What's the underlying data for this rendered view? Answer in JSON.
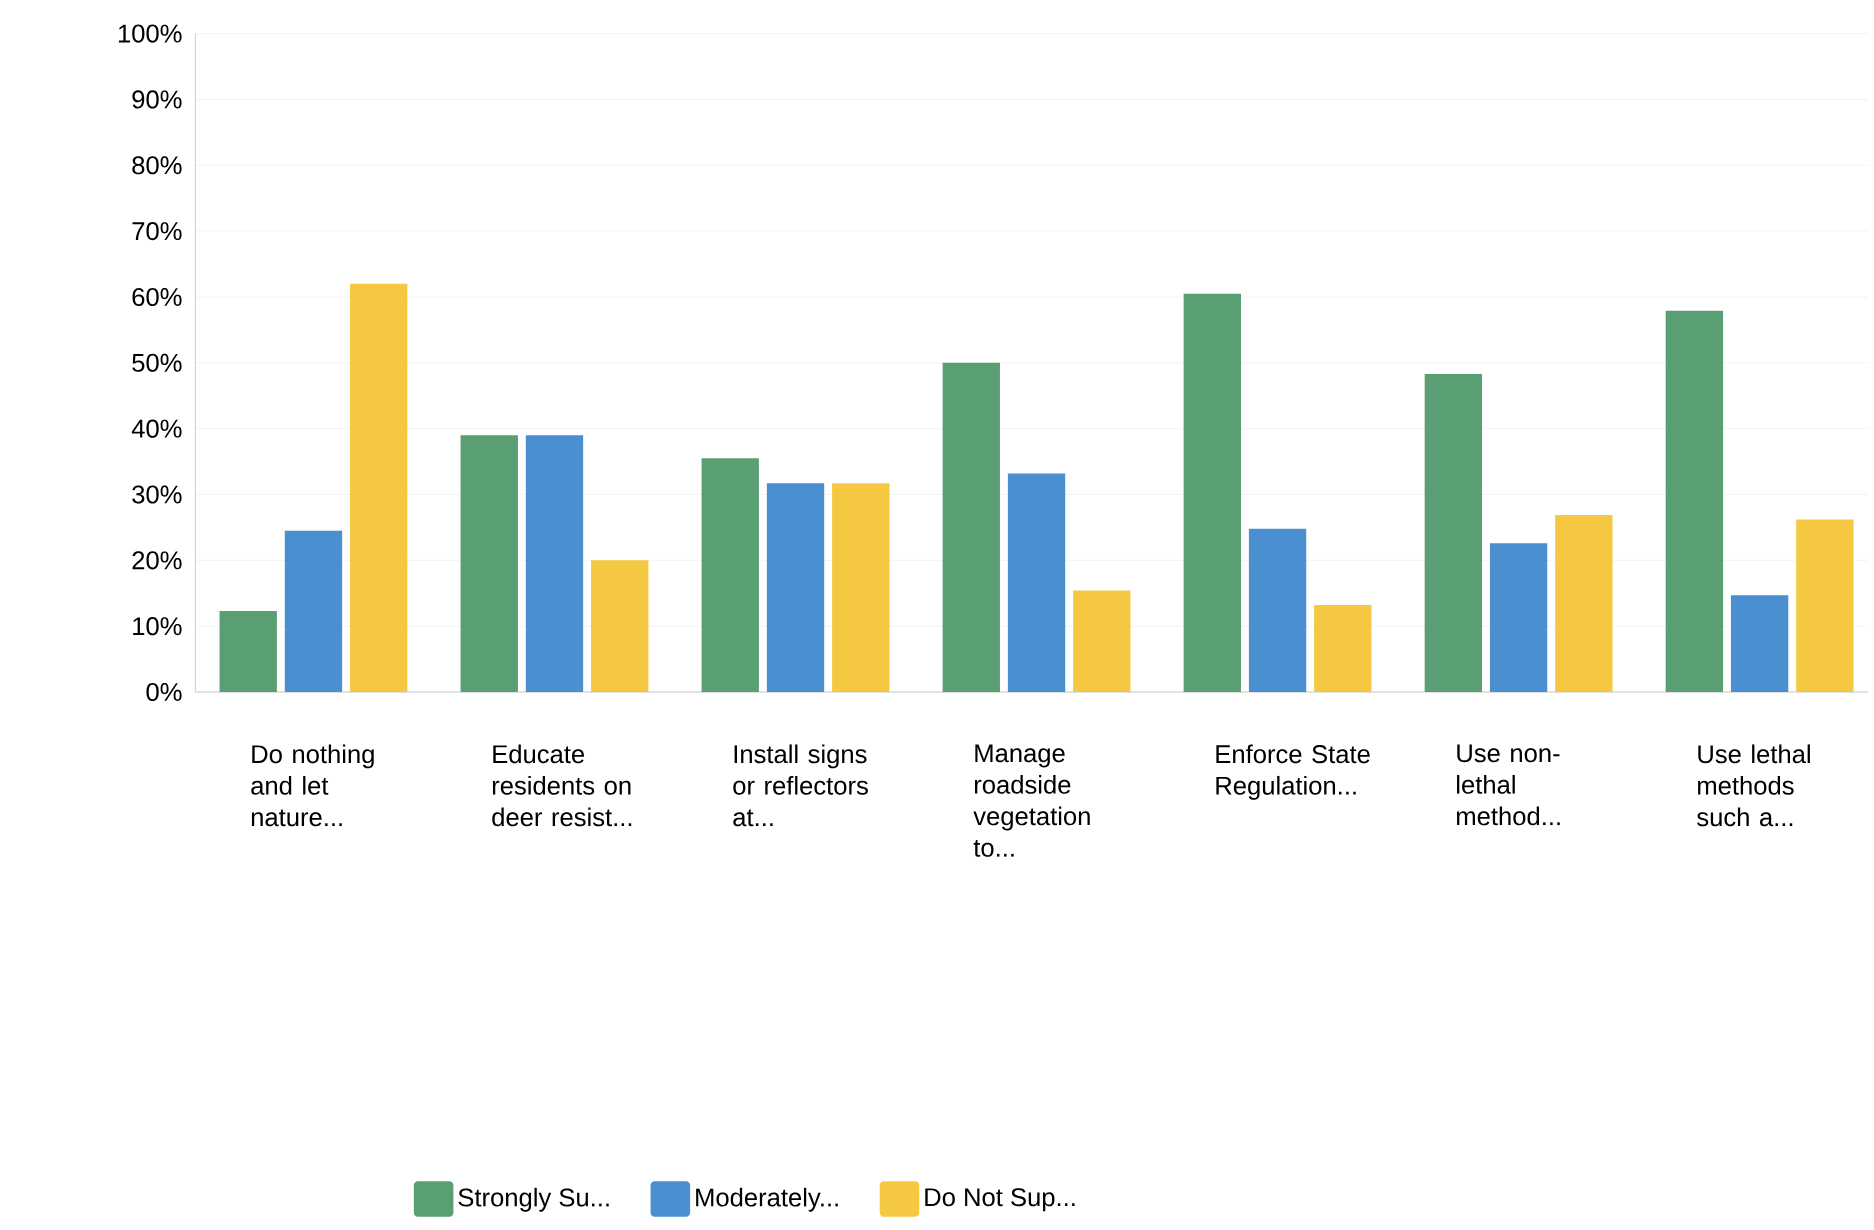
{
  "chart_data": {
    "type": "bar",
    "categories": [
      "Do nothing and let nature...",
      "Educate residents on deer resist...",
      "Install signs or reflectors at...",
      "Manage roadside vegetation to...",
      "Enforce State Regulation...",
      "Use non-lethal method...",
      "Use lethal methods such a..."
    ],
    "series": [
      {
        "name": "Strongly Su...",
        "color": "#5a9e73",
        "values": [
          12.3,
          39,
          35.5,
          50,
          60.5,
          48.3,
          57.9
        ]
      },
      {
        "name": "Moderately...",
        "color": "#4a8fd0",
        "values": [
          24.5,
          39,
          31.7,
          33.2,
          24.8,
          22.6,
          14.7
        ]
      },
      {
        "name": "Do Not Sup...",
        "color": "#f5c842",
        "values": [
          62,
          20,
          31.7,
          15.4,
          13.2,
          26.9,
          26.2
        ]
      }
    ],
    "ylim": [
      0,
      100
    ],
    "yticks": [
      {
        "value": 0,
        "label": "0%"
      },
      {
        "value": 10,
        "label": "10%"
      },
      {
        "value": 20,
        "label": "20%"
      },
      {
        "value": 30,
        "label": "30%"
      },
      {
        "value": 40,
        "label": "40%"
      },
      {
        "value": 50,
        "label": "50%"
      },
      {
        "value": 60,
        "label": "60%"
      },
      {
        "value": 70,
        "label": "70%"
      },
      {
        "value": 80,
        "label": "80%"
      },
      {
        "value": 90,
        "label": "90%"
      },
      {
        "value": 100,
        "label": "100%"
      }
    ],
    "grid": "y",
    "legend": "bottom"
  }
}
